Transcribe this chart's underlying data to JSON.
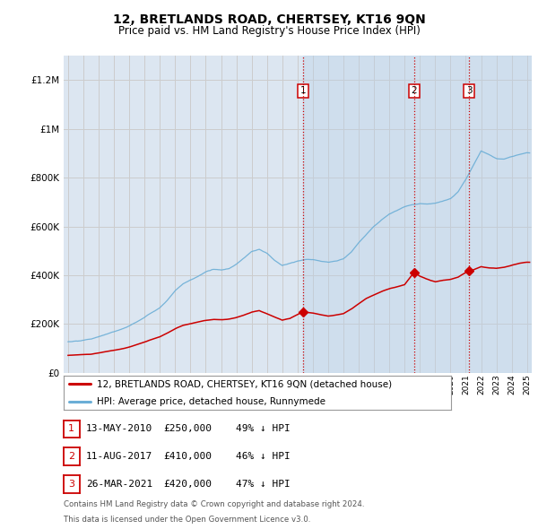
{
  "title": "12, BRETLANDS ROAD, CHERTSEY, KT16 9QN",
  "subtitle": "Price paid vs. HM Land Registry's House Price Index (HPI)",
  "hpi_label": "HPI: Average price, detached house, Runnymede",
  "property_label": "12, BRETLANDS ROAD, CHERTSEY, KT16 9QN (detached house)",
  "footer1": "Contains HM Land Registry data © Crown copyright and database right 2024.",
  "footer2": "This data is licensed under the Open Government Licence v3.0.",
  "sales": [
    {
      "num": 1,
      "date": "13-MAY-2010",
      "price": 250000,
      "pct": "49%",
      "x": 2010.36
    },
    {
      "num": 2,
      "date": "11-AUG-2017",
      "price": 410000,
      "pct": "46%",
      "x": 2017.61
    },
    {
      "num": 3,
      "date": "26-MAR-2021",
      "price": 420000,
      "pct": "47%",
      "x": 2021.23
    }
  ],
  "hpi_color": "#6baed6",
  "sale_color": "#cc0000",
  "grid_color": "#cccccc",
  "background_plot": "#dce6f1",
  "shade_color": "#c8ddf0",
  "ylim": [
    0,
    1300000
  ],
  "yticks": [
    0,
    200000,
    400000,
    600000,
    800000,
    1000000,
    1200000
  ],
  "xlim": [
    1994.7,
    2025.3
  ],
  "xticks": [
    1995,
    1996,
    1997,
    1998,
    1999,
    2000,
    2001,
    2002,
    2003,
    2004,
    2005,
    2006,
    2007,
    2008,
    2009,
    2010,
    2011,
    2012,
    2013,
    2014,
    2015,
    2016,
    2017,
    2018,
    2019,
    2020,
    2021,
    2022,
    2023,
    2024,
    2025
  ],
  "hpi_anchors": [
    [
      1995.0,
      128000
    ],
    [
      1995.5,
      130000
    ],
    [
      1996.0,
      134000
    ],
    [
      1996.5,
      138000
    ],
    [
      1997.0,
      148000
    ],
    [
      1997.5,
      158000
    ],
    [
      1998.0,
      168000
    ],
    [
      1998.5,
      178000
    ],
    [
      1999.0,
      192000
    ],
    [
      1999.5,
      210000
    ],
    [
      2000.0,
      228000
    ],
    [
      2000.5,
      250000
    ],
    [
      2001.0,
      268000
    ],
    [
      2001.5,
      300000
    ],
    [
      2002.0,
      340000
    ],
    [
      2002.5,
      368000
    ],
    [
      2003.0,
      385000
    ],
    [
      2003.5,
      400000
    ],
    [
      2004.0,
      418000
    ],
    [
      2004.5,
      428000
    ],
    [
      2005.0,
      425000
    ],
    [
      2005.5,
      430000
    ],
    [
      2006.0,
      448000
    ],
    [
      2006.5,
      472000
    ],
    [
      2007.0,
      498000
    ],
    [
      2007.5,
      508000
    ],
    [
      2008.0,
      492000
    ],
    [
      2008.5,
      462000
    ],
    [
      2009.0,
      440000
    ],
    [
      2009.5,
      448000
    ],
    [
      2010.0,
      460000
    ],
    [
      2010.5,
      468000
    ],
    [
      2011.0,
      468000
    ],
    [
      2011.5,
      462000
    ],
    [
      2012.0,
      458000
    ],
    [
      2012.5,
      462000
    ],
    [
      2013.0,
      472000
    ],
    [
      2013.5,
      500000
    ],
    [
      2014.0,
      540000
    ],
    [
      2014.5,
      575000
    ],
    [
      2015.0,
      608000
    ],
    [
      2015.5,
      635000
    ],
    [
      2016.0,
      658000
    ],
    [
      2016.5,
      672000
    ],
    [
      2017.0,
      688000
    ],
    [
      2017.5,
      695000
    ],
    [
      2018.0,
      700000
    ],
    [
      2018.5,
      698000
    ],
    [
      2019.0,
      702000
    ],
    [
      2019.5,
      710000
    ],
    [
      2020.0,
      720000
    ],
    [
      2020.5,
      748000
    ],
    [
      2021.0,
      798000
    ],
    [
      2021.5,
      858000
    ],
    [
      2022.0,
      915000
    ],
    [
      2022.5,
      900000
    ],
    [
      2023.0,
      882000
    ],
    [
      2023.5,
      878000
    ],
    [
      2024.0,
      888000
    ],
    [
      2024.5,
      898000
    ],
    [
      2025.0,
      905000
    ]
  ],
  "sale_anchors": [
    [
      1995.0,
      72000
    ],
    [
      1995.5,
      73500
    ],
    [
      1996.0,
      75000
    ],
    [
      1996.5,
      77000
    ],
    [
      1997.0,
      82000
    ],
    [
      1997.5,
      88000
    ],
    [
      1998.0,
      94000
    ],
    [
      1998.5,
      100000
    ],
    [
      1999.0,
      108000
    ],
    [
      1999.5,
      118000
    ],
    [
      2000.0,
      128000
    ],
    [
      2000.5,
      140000
    ],
    [
      2001.0,
      150000
    ],
    [
      2001.5,
      165000
    ],
    [
      2002.0,
      182000
    ],
    [
      2002.5,
      196000
    ],
    [
      2003.0,
      202000
    ],
    [
      2003.5,
      210000
    ],
    [
      2004.0,
      216000
    ],
    [
      2004.5,
      220000
    ],
    [
      2005.0,
      218000
    ],
    [
      2005.5,
      220000
    ],
    [
      2006.0,
      226000
    ],
    [
      2006.5,
      236000
    ],
    [
      2007.0,
      248000
    ],
    [
      2007.5,
      255000
    ],
    [
      2008.0,
      242000
    ],
    [
      2008.5,
      228000
    ],
    [
      2009.0,
      215000
    ],
    [
      2009.5,
      222000
    ],
    [
      2010.36,
      250000
    ],
    [
      2010.5,
      248000
    ],
    [
      2011.0,
      244000
    ],
    [
      2011.5,
      238000
    ],
    [
      2012.0,
      232000
    ],
    [
      2012.5,
      236000
    ],
    [
      2013.0,
      242000
    ],
    [
      2013.5,
      260000
    ],
    [
      2014.0,
      282000
    ],
    [
      2014.5,
      304000
    ],
    [
      2015.0,
      318000
    ],
    [
      2015.5,
      332000
    ],
    [
      2016.0,
      344000
    ],
    [
      2016.5,
      352000
    ],
    [
      2017.0,
      360000
    ],
    [
      2017.61,
      410000
    ],
    [
      2018.0,
      395000
    ],
    [
      2018.5,
      382000
    ],
    [
      2019.0,
      372000
    ],
    [
      2019.5,
      378000
    ],
    [
      2020.0,
      382000
    ],
    [
      2020.5,
      392000
    ],
    [
      2021.23,
      420000
    ],
    [
      2021.5,
      422000
    ],
    [
      2022.0,
      435000
    ],
    [
      2022.5,
      430000
    ],
    [
      2023.0,
      428000
    ],
    [
      2023.5,
      432000
    ],
    [
      2024.0,
      440000
    ],
    [
      2024.5,
      448000
    ],
    [
      2025.0,
      452000
    ]
  ]
}
